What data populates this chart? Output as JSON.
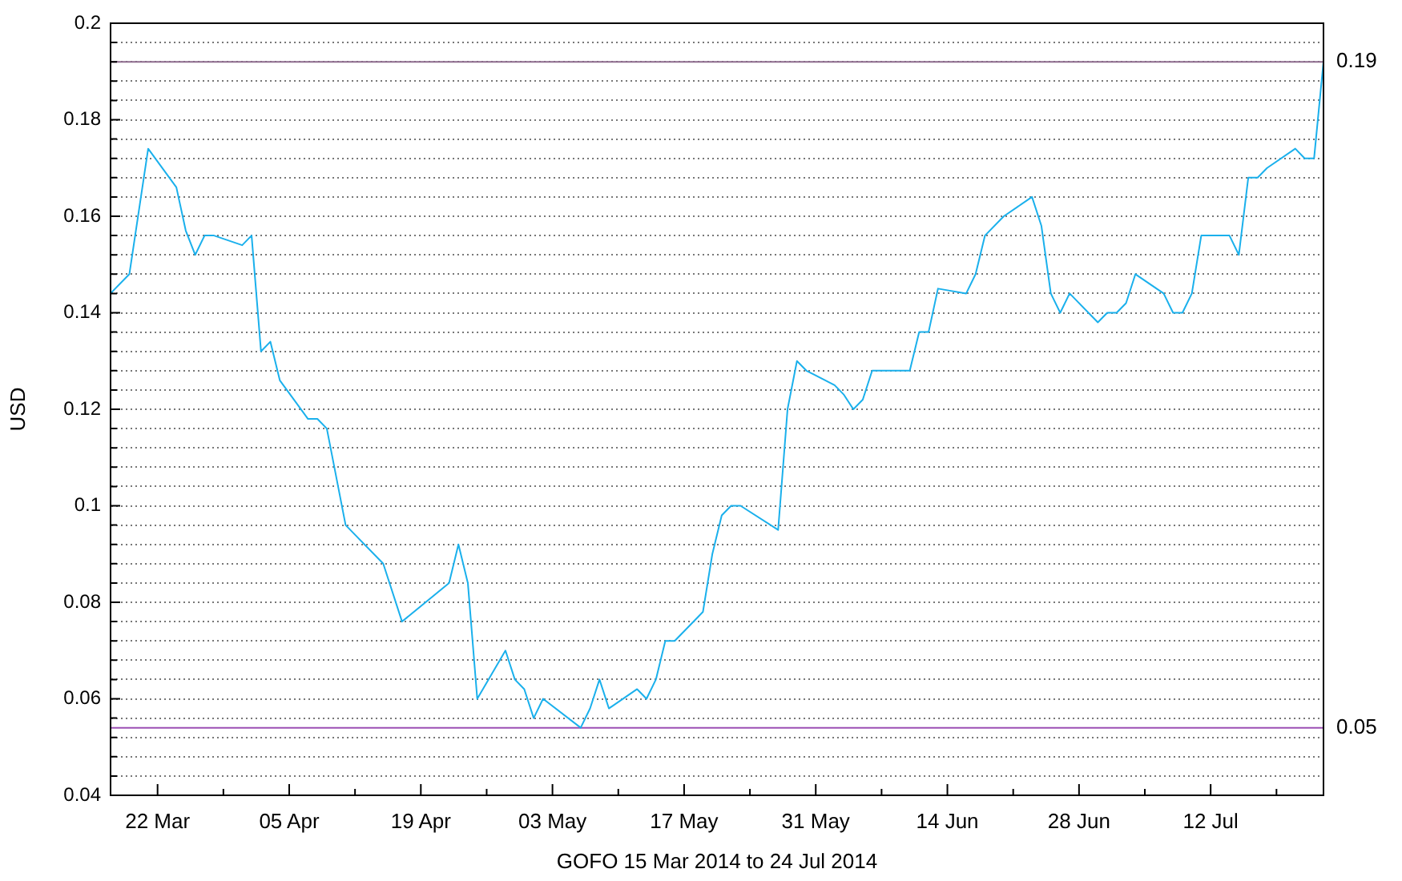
{
  "chart_data": {
    "type": "line",
    "xlabel": "GOFO 15 Mar 2014 to 24 Jul 2014",
    "ylabel": "USD",
    "x": [
      "2014-03-17",
      "2014-03-19",
      "2014-03-21",
      "2014-03-24",
      "2014-03-25",
      "2014-03-26",
      "2014-03-27",
      "2014-03-28",
      "2014-03-31",
      "2014-04-01",
      "2014-04-02",
      "2014-04-03",
      "2014-04-04",
      "2014-04-07",
      "2014-04-08",
      "2014-04-09",
      "2014-04-11",
      "2014-04-15",
      "2014-04-17",
      "2014-04-22",
      "2014-04-23",
      "2014-04-24",
      "2014-04-25",
      "2014-04-28",
      "2014-04-29",
      "2014-04-30",
      "2014-05-01",
      "2014-05-02",
      "2014-05-06",
      "2014-05-07",
      "2014-05-08",
      "2014-05-09",
      "2014-05-12",
      "2014-05-13",
      "2014-05-14",
      "2014-05-15",
      "2014-05-16",
      "2014-05-19",
      "2014-05-20",
      "2014-05-21",
      "2014-05-22",
      "2014-05-23",
      "2014-05-27",
      "2014-05-28",
      "2014-05-29",
      "2014-05-30",
      "2014-06-02",
      "2014-06-03",
      "2014-06-04",
      "2014-06-05",
      "2014-06-06",
      "2014-06-10",
      "2014-06-11",
      "2014-06-12",
      "2014-06-13",
      "2014-06-16",
      "2014-06-17",
      "2014-06-18",
      "2014-06-20",
      "2014-06-23",
      "2014-06-24",
      "2014-06-25",
      "2014-06-26",
      "2014-06-27",
      "2014-06-30",
      "2014-07-01",
      "2014-07-02",
      "2014-07-03",
      "2014-07-04",
      "2014-07-07",
      "2014-07-08",
      "2014-07-09",
      "2014-07-10",
      "2014-07-11",
      "2014-07-14",
      "2014-07-15",
      "2014-07-16",
      "2014-07-17",
      "2014-07-18",
      "2014-07-21",
      "2014-07-22",
      "2014-07-23",
      "2014-07-24"
    ],
    "values": [
      0.144,
      0.148,
      0.174,
      0.166,
      0.157,
      0.152,
      0.156,
      0.156,
      0.154,
      0.156,
      0.132,
      0.134,
      0.126,
      0.118,
      0.118,
      0.116,
      0.096,
      0.088,
      0.076,
      0.084,
      0.092,
      0.084,
      0.06,
      0.07,
      0.064,
      0.062,
      0.056,
      0.06,
      0.054,
      0.058,
      0.064,
      0.058,
      0.062,
      0.06,
      0.064,
      0.072,
      0.072,
      0.078,
      0.09,
      0.098,
      0.1,
      0.1,
      0.095,
      0.12,
      0.13,
      0.128,
      0.125,
      0.123,
      0.12,
      0.122,
      0.128,
      0.128,
      0.136,
      0.136,
      0.145,
      0.144,
      0.148,
      0.156,
      0.16,
      0.164,
      0.158,
      0.144,
      0.14,
      0.144,
      0.138,
      0.14,
      0.14,
      0.142,
      0.148,
      0.144,
      0.14,
      0.14,
      0.144,
      0.156,
      0.156,
      0.152,
      0.168,
      0.168,
      0.17,
      0.174,
      0.172,
      0.172,
      0.192
    ],
    "color": "#1ab0ec",
    "marker": "none",
    "xlim": [
      "2014-03-17",
      "2014-07-24"
    ],
    "xticks": [
      {
        "value": "2014-03-22",
        "label": "22 Mar"
      },
      {
        "value": "2014-03-29",
        "label": null
      },
      {
        "value": "2014-04-05",
        "label": "05 Apr"
      },
      {
        "value": "2014-04-12",
        "label": null
      },
      {
        "value": "2014-04-19",
        "label": "19 Apr"
      },
      {
        "value": "2014-04-26",
        "label": null
      },
      {
        "value": "2014-05-03",
        "label": "03 May"
      },
      {
        "value": "2014-05-10",
        "label": null
      },
      {
        "value": "2014-05-17",
        "label": "17 May"
      },
      {
        "value": "2014-05-24",
        "label": null
      },
      {
        "value": "2014-05-31",
        "label": "31 May"
      },
      {
        "value": "2014-06-07",
        "label": null
      },
      {
        "value": "2014-06-14",
        "label": "14 Jun"
      },
      {
        "value": "2014-06-21",
        "label": null
      },
      {
        "value": "2014-06-28",
        "label": "28 Jun"
      },
      {
        "value": "2014-07-05",
        "label": null
      },
      {
        "value": "2014-07-12",
        "label": "12 Jul"
      },
      {
        "value": "2014-07-19",
        "label": null
      }
    ],
    "ylim": [
      0.04,
      0.2
    ],
    "yticks": [
      0.04,
      {
        "value": 0.044,
        "label": null
      },
      {
        "value": 0.048,
        "label": null
      },
      {
        "value": 0.052,
        "label": null
      },
      {
        "value": 0.056,
        "label": null
      },
      0.06,
      {
        "value": 0.064,
        "label": null
      },
      {
        "value": 0.068,
        "label": null
      },
      {
        "value": 0.072,
        "label": null
      },
      {
        "value": 0.076,
        "label": null
      },
      0.08,
      {
        "value": 0.084,
        "label": null
      },
      {
        "value": 0.088,
        "label": null
      },
      {
        "value": 0.092,
        "label": null
      },
      {
        "value": 0.096,
        "label": null
      },
      0.1,
      {
        "value": 0.104,
        "label": null
      },
      {
        "value": 0.108,
        "label": null
      },
      {
        "value": 0.112,
        "label": null
      },
      {
        "value": 0.116,
        "label": null
      },
      0.12,
      {
        "value": 0.124,
        "label": null
      },
      {
        "value": 0.128,
        "label": null
      },
      {
        "value": 0.132,
        "label": null
      },
      {
        "value": 0.136,
        "label": null
      },
      0.14,
      {
        "value": 0.144,
        "label": null
      },
      {
        "value": 0.148,
        "label": null
      },
      {
        "value": 0.152,
        "label": null
      },
      {
        "value": 0.156,
        "label": null
      },
      0.16,
      {
        "value": 0.164,
        "label": null
      },
      {
        "value": 0.168,
        "label": null
      },
      {
        "value": 0.172,
        "label": null
      },
      {
        "value": 0.176,
        "label": null
      },
      0.18,
      {
        "value": 0.184,
        "label": null
      },
      {
        "value": 0.188,
        "label": null
      },
      {
        "value": 0.192,
        "label": null
      },
      {
        "value": 0.196,
        "label": null
      },
      0.2
    ],
    "grid": "y",
    "ref_lines": [
      {
        "axis": "y",
        "value": 0.192,
        "label": "0.19",
        "color": "#8c6a8c"
      },
      {
        "axis": "y",
        "value": 0.054,
        "label": "0.05",
        "color": "#9b4fb5"
      }
    ]
  }
}
